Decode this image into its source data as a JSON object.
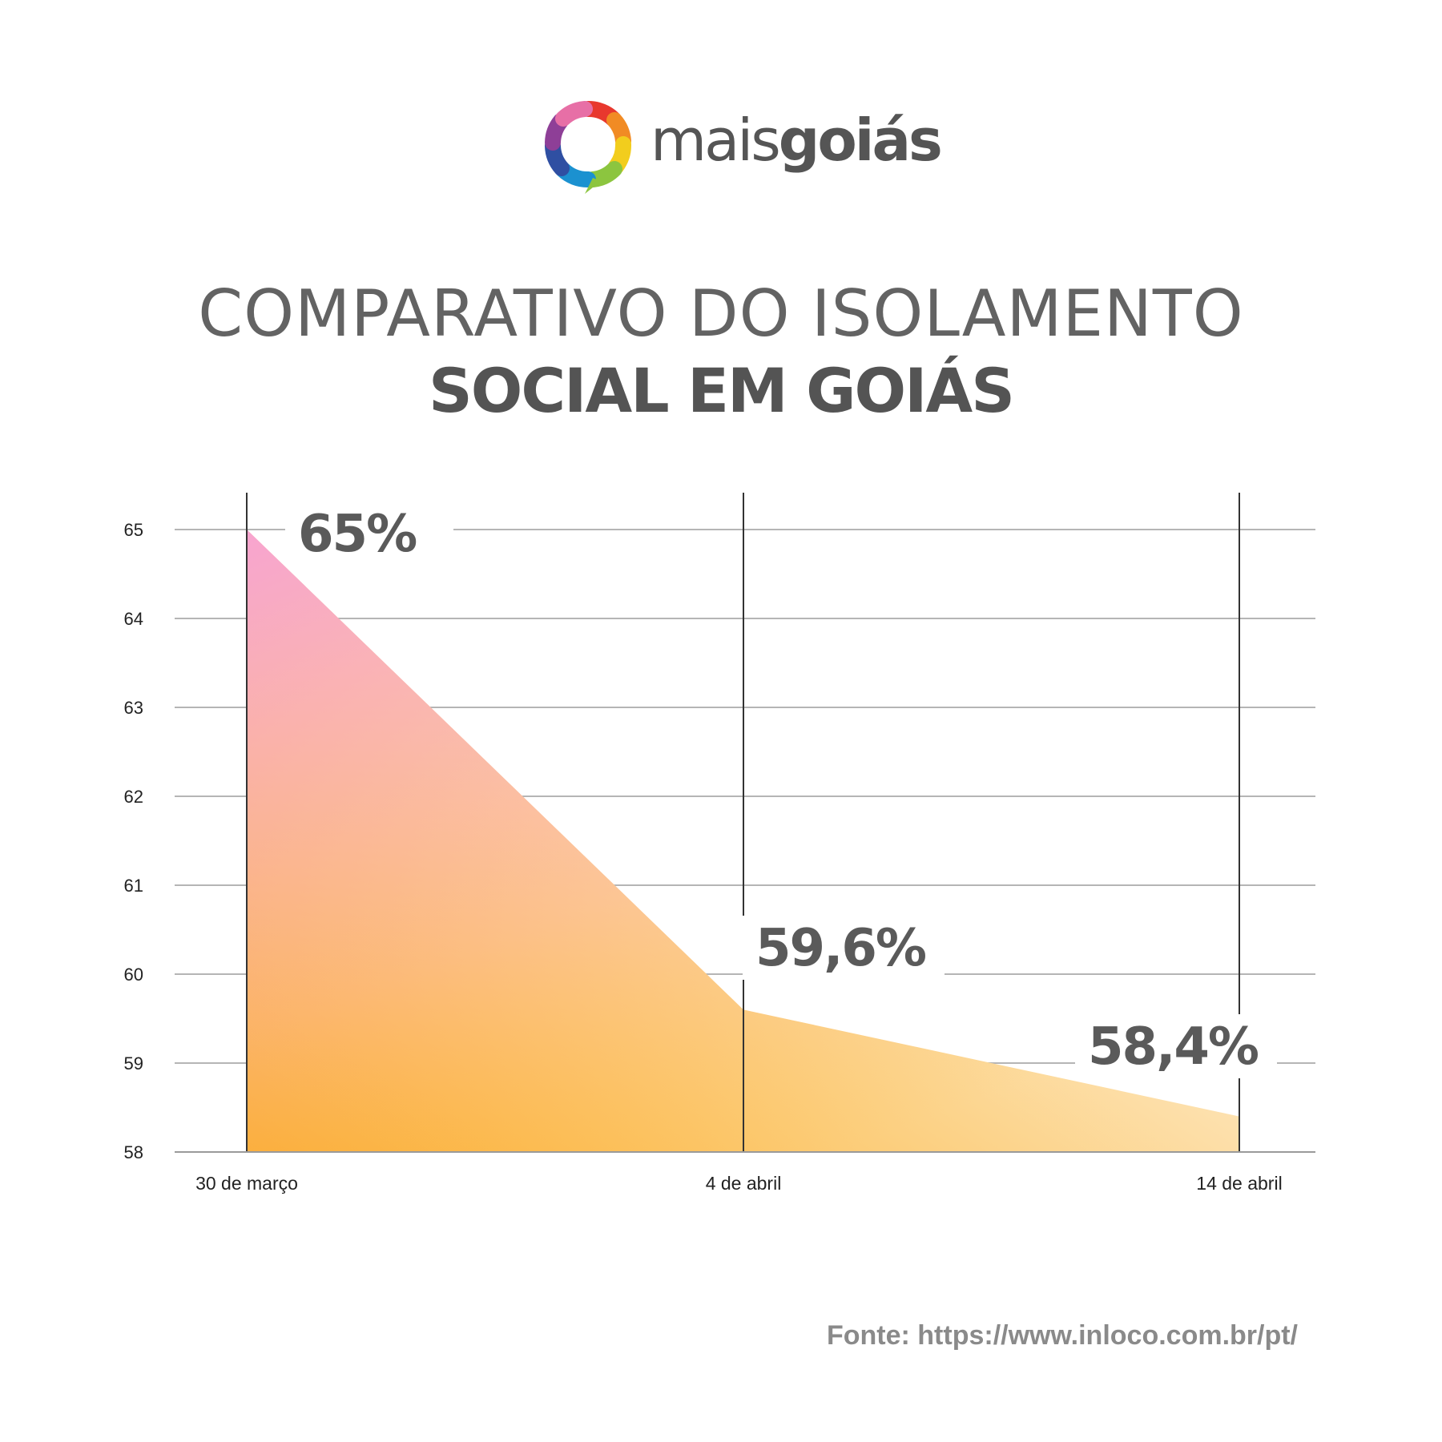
{
  "brand": {
    "name_light": "mais",
    "name_bold": "goiás"
  },
  "title": {
    "line1": "COMPARATIVO DO ISOLAMENTO",
    "line2": "SOCIAL EM GOIÁS"
  },
  "source": "Fonte: https://www.inloco.com.br/pt/",
  "colors": {
    "text_dark": "#5a5a5a",
    "gradient_pink": "#f9a8d4",
    "gradient_orange": "#fbb02d",
    "gradient_light": "#fff5e6",
    "grid": "#b5b5b5"
  },
  "chart_data": {
    "type": "area",
    "x": [
      "30 de março",
      "4 de abril",
      "14 de abril"
    ],
    "values": [
      65,
      59.6,
      58.4
    ],
    "data_labels": [
      "65%",
      "59,6%",
      "58,4%"
    ],
    "yticks": [
      58,
      59,
      60,
      61,
      62,
      63,
      64,
      65
    ],
    "ylim": [
      58,
      65
    ],
    "grid": true
  }
}
